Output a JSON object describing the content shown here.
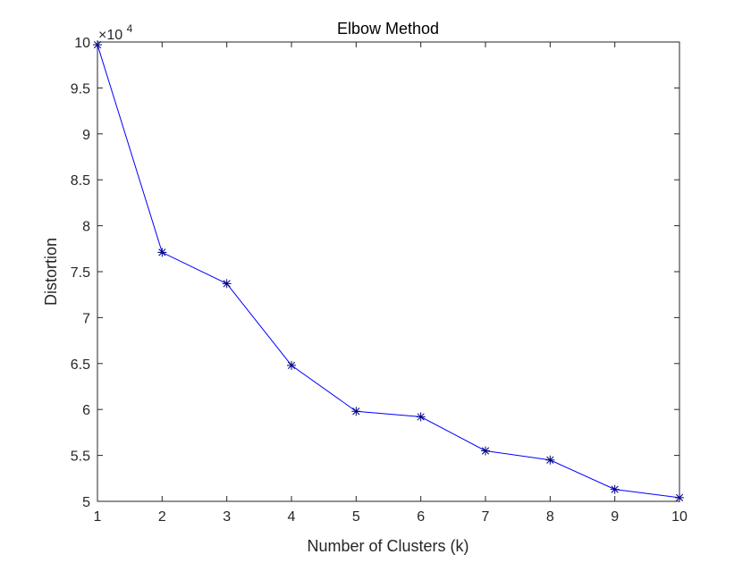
{
  "chart_data": {
    "type": "line",
    "title": "Elbow Method",
    "xlabel": "Number of Clusters (k)",
    "ylabel": "Distortion",
    "y_exponent_label": {
      "base": "×10",
      "power": "4"
    },
    "x": [
      1,
      2,
      3,
      4,
      5,
      6,
      7,
      8,
      9,
      10
    ],
    "series": [
      {
        "values": [
          9.97,
          7.71,
          7.37,
          6.48,
          5.98,
          5.92,
          5.55,
          5.45,
          5.13,
          5.04
        ],
        "color": "#0000ff",
        "marker": "asterisk",
        "marker_color": "#000080"
      }
    ],
    "xlim": [
      1,
      10
    ],
    "ylim": [
      5,
      10
    ],
    "xticks": [
      "1",
      "2",
      "3",
      "4",
      "5",
      "6",
      "7",
      "8",
      "9",
      "10"
    ],
    "yticks": [
      "5",
      "5.5",
      "6",
      "6.5",
      "7",
      "7.5",
      "8",
      "8.5",
      "9",
      "9.5",
      "10"
    ],
    "grid": false
  }
}
